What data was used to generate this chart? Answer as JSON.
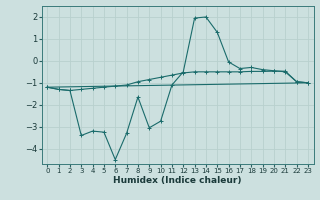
{
  "xlabel": "Humidex (Indice chaleur)",
  "background_color": "#cce0df",
  "grid_color": "#b8d0ce",
  "line_color": "#1a6b6b",
  "xlim": [
    -0.5,
    23.5
  ],
  "ylim": [
    -4.7,
    2.5
  ],
  "xticks": [
    0,
    1,
    2,
    3,
    4,
    5,
    6,
    7,
    8,
    9,
    10,
    11,
    12,
    13,
    14,
    15,
    16,
    17,
    18,
    19,
    20,
    21,
    22,
    23
  ],
  "yticks": [
    -4,
    -3,
    -2,
    -1,
    0,
    1,
    2
  ],
  "line1_x": [
    0,
    1,
    2,
    3,
    4,
    5,
    6,
    7,
    8,
    9,
    10,
    11,
    12,
    13,
    14,
    15,
    16,
    17,
    18,
    19,
    20,
    21,
    22,
    23
  ],
  "line1_y": [
    -1.2,
    -1.3,
    -1.35,
    -1.3,
    -1.25,
    -1.2,
    -1.15,
    -1.1,
    -0.95,
    -0.85,
    -0.75,
    -0.65,
    -0.55,
    -0.5,
    -0.5,
    -0.5,
    -0.5,
    -0.5,
    -0.48,
    -0.48,
    -0.47,
    -0.47,
    -0.95,
    -1.0
  ],
  "line2_x": [
    0,
    1,
    2,
    3,
    4,
    5,
    6,
    7,
    8,
    9,
    10,
    11,
    12,
    13,
    14,
    15,
    16,
    17,
    18,
    19,
    20,
    21,
    22,
    23
  ],
  "line2_y": [
    -1.2,
    -1.3,
    -1.35,
    -3.4,
    -3.2,
    -3.25,
    -4.5,
    -3.3,
    -1.65,
    -3.05,
    -2.75,
    -1.1,
    -0.5,
    1.95,
    2.0,
    1.3,
    -0.05,
    -0.35,
    -0.3,
    -0.4,
    -0.45,
    -0.5,
    -0.95,
    -1.0
  ],
  "line3_x": [
    0,
    23
  ],
  "line3_y": [
    -1.2,
    -1.0
  ]
}
